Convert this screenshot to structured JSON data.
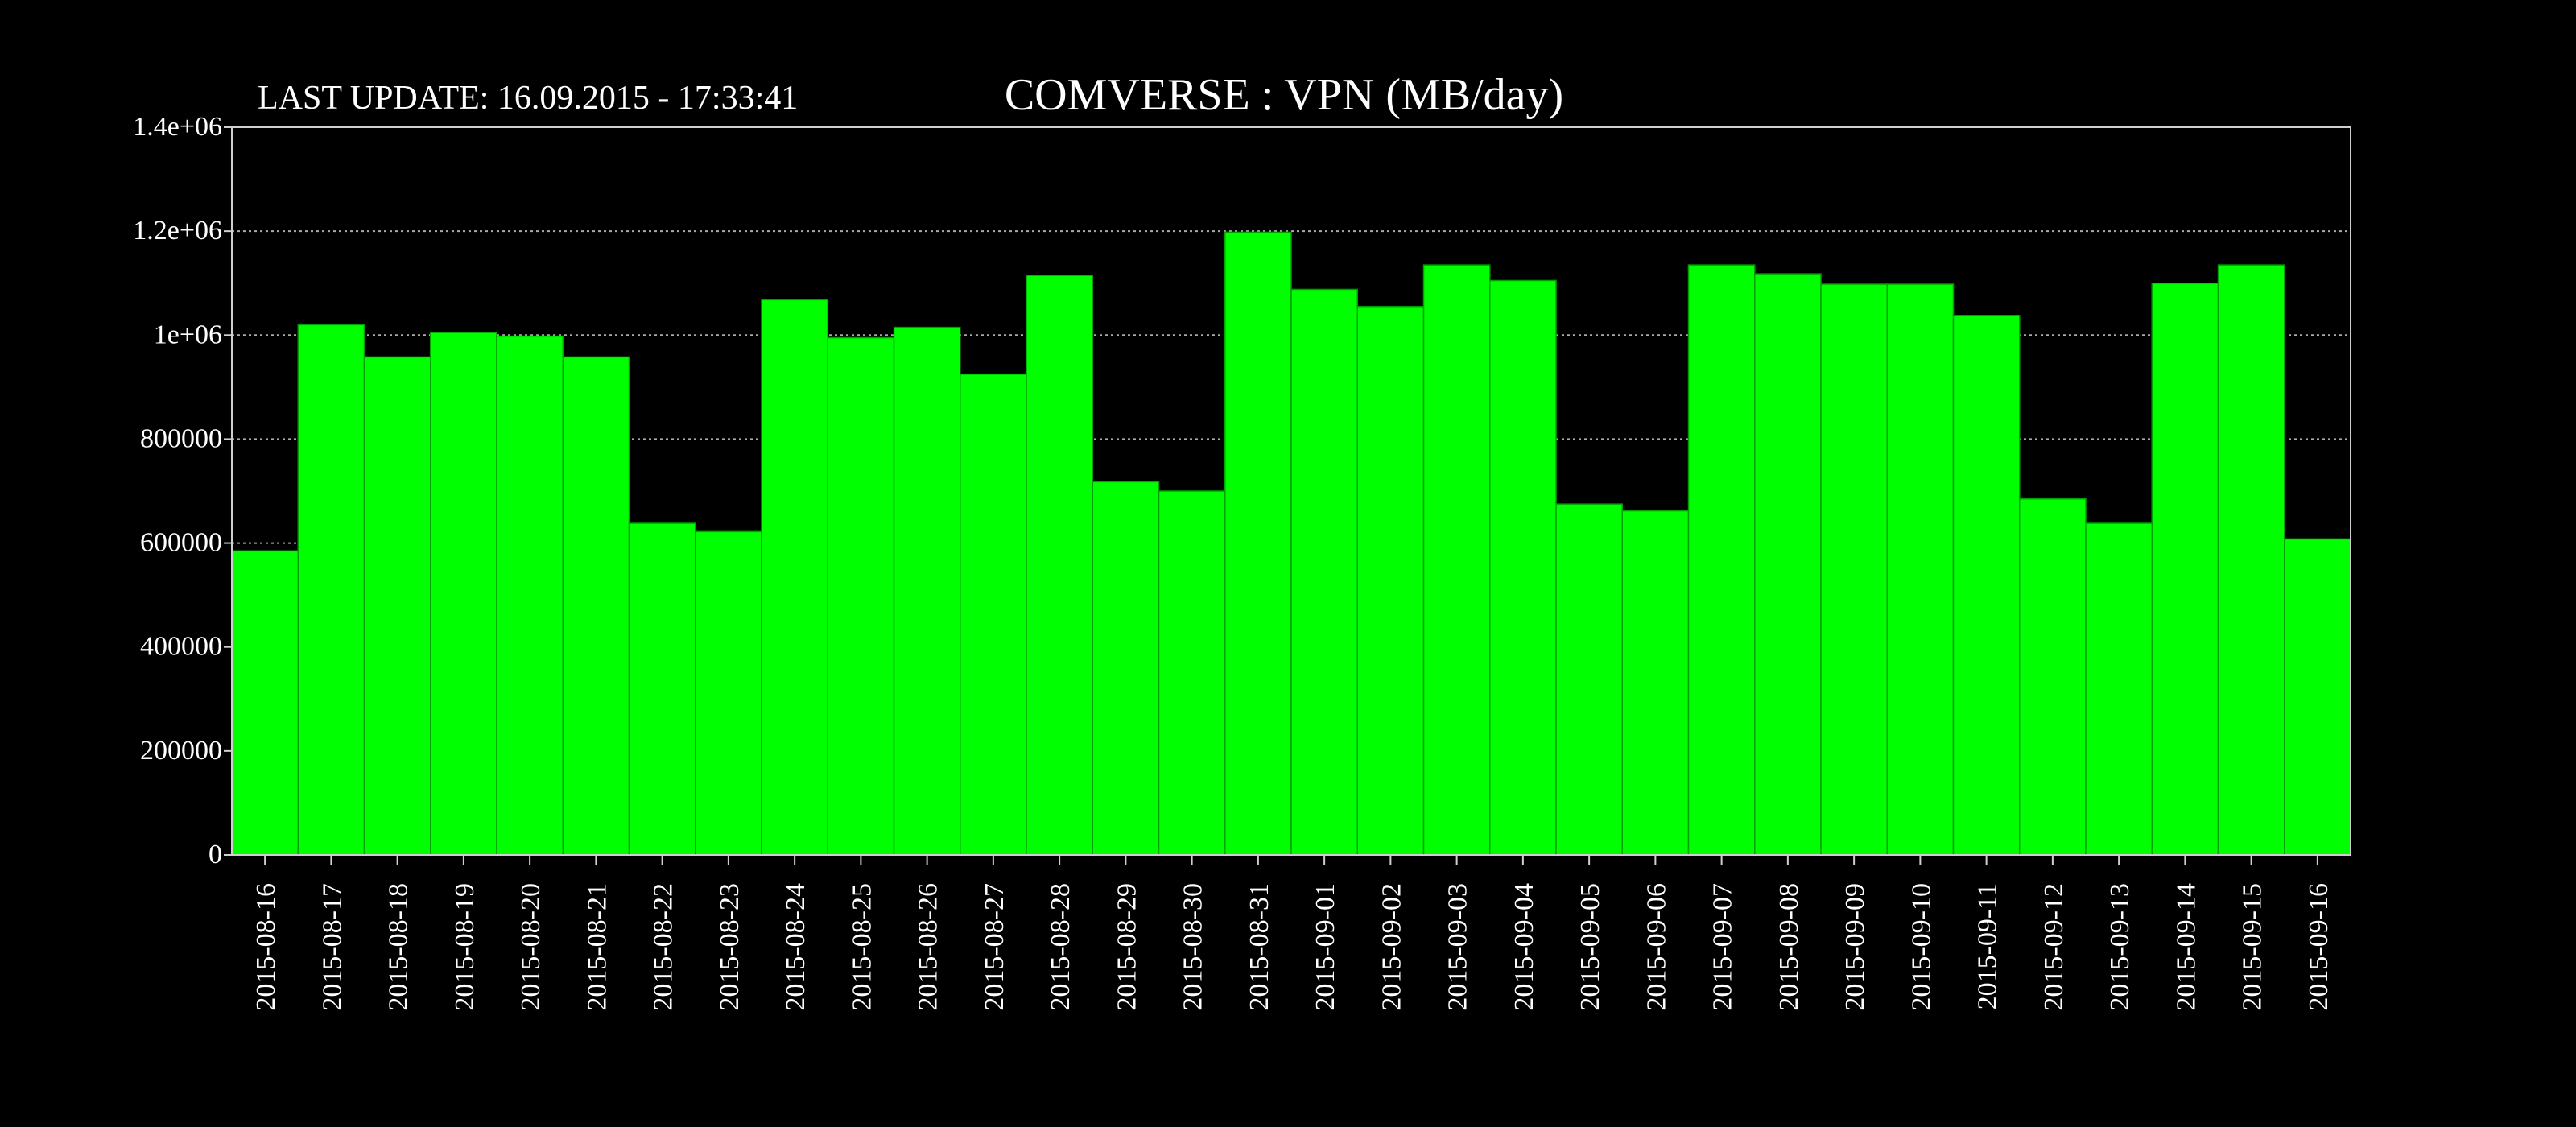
{
  "header": {
    "last_update": "LAST UPDATE: 16.09.2015 - 17:33:41"
  },
  "chart_data": {
    "type": "bar",
    "title": "COMVERSE : VPN (MB/day)",
    "xlabel": "",
    "ylabel": "",
    "ylim": [
      0,
      1400000
    ],
    "yticks": [
      0,
      200000,
      400000,
      600000,
      800000,
      1000000,
      1200000,
      1400000
    ],
    "ytick_labels": [
      "0",
      "200000",
      "400000",
      "600000",
      "800000",
      "1e+06",
      "1.2e+06",
      "1.4e+06"
    ],
    "grid": true,
    "bar_color": "#00ff00",
    "categories": [
      "2015-08-16",
      "2015-08-17",
      "2015-08-18",
      "2015-08-19",
      "2015-08-20",
      "2015-08-21",
      "2015-08-22",
      "2015-08-23",
      "2015-08-24",
      "2015-08-25",
      "2015-08-26",
      "2015-08-27",
      "2015-08-28",
      "2015-08-29",
      "2015-08-30",
      "2015-08-31",
      "2015-09-01",
      "2015-09-02",
      "2015-09-03",
      "2015-09-04",
      "2015-09-05",
      "2015-09-06",
      "2015-09-07",
      "2015-09-08",
      "2015-09-09",
      "2015-09-10",
      "2015-09-11",
      "2015-09-12",
      "2015-09-13",
      "2015-09-14",
      "2015-09-15",
      "2015-09-16"
    ],
    "values": [
      585000,
      1020000,
      958000,
      1005000,
      998000,
      958000,
      638000,
      622000,
      1068000,
      995000,
      1015000,
      925000,
      1115000,
      718000,
      700000,
      1198000,
      1088000,
      1055000,
      1135000,
      1105000,
      675000,
      662000,
      1135000,
      1118000,
      1098000,
      1098000,
      1038000,
      685000,
      638000,
      1100000,
      1135000,
      608000
    ]
  }
}
